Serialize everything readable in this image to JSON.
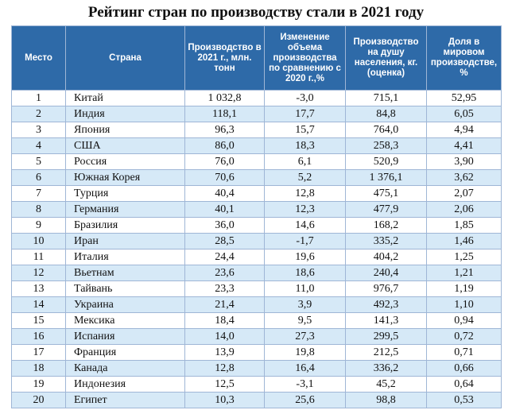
{
  "title": "Рейтинг стран по производству стали в 2021 году",
  "headers": [
    "Место",
    "Страна",
    "Производство в 2021 г., млн. тонн",
    "Изменение объема производства по сравнению с 2020 г.,%",
    "Производство на душу населения, кг. (оценка)",
    "Доля в мировом производстве, %"
  ],
  "rows": [
    {
      "rank": "1",
      "country": "Китай",
      "production": "1 032,8",
      "change": "-3,0",
      "per_capita": "715,1",
      "share": "52,95"
    },
    {
      "rank": "2",
      "country": "Индия",
      "production": "118,1",
      "change": "17,7",
      "per_capita": "84,8",
      "share": "6,05"
    },
    {
      "rank": "3",
      "country": "Япония",
      "production": "96,3",
      "change": "15,7",
      "per_capita": "764,0",
      "share": "4,94"
    },
    {
      "rank": "4",
      "country": "США",
      "production": "86,0",
      "change": "18,3",
      "per_capita": "258,3",
      "share": "4,41"
    },
    {
      "rank": "5",
      "country": "Россия",
      "production": "76,0",
      "change": "6,1",
      "per_capita": "520,9",
      "share": "3,90"
    },
    {
      "rank": "6",
      "country": "Южная Корея",
      "production": "70,6",
      "change": "5,2",
      "per_capita": "1 376,1",
      "share": "3,62"
    },
    {
      "rank": "7",
      "country": "Турция",
      "production": "40,4",
      "change": "12,8",
      "per_capita": "475,1",
      "share": "2,07"
    },
    {
      "rank": "8",
      "country": "Германия",
      "production": "40,1",
      "change": "12,3",
      "per_capita": "477,9",
      "share": "2,06"
    },
    {
      "rank": "9",
      "country": "Бразилия",
      "production": "36,0",
      "change": "14,6",
      "per_capita": "168,2",
      "share": "1,85"
    },
    {
      "rank": "10",
      "country": "Иран",
      "production": "28,5",
      "change": "-1,7",
      "per_capita": "335,2",
      "share": "1,46"
    },
    {
      "rank": "11",
      "country": "Италия",
      "production": "24,4",
      "change": "19,6",
      "per_capita": "404,2",
      "share": "1,25"
    },
    {
      "rank": "12",
      "country": "Вьетнам",
      "production": "23,6",
      "change": "18,6",
      "per_capita": "240,4",
      "share": "1,21"
    },
    {
      "rank": "13",
      "country": "Тайвань",
      "production": "23,3",
      "change": "11,0",
      "per_capita": "976,7",
      "share": "1,19"
    },
    {
      "rank": "14",
      "country": "Украина",
      "production": "21,4",
      "change": "3,9",
      "per_capita": "492,3",
      "share": "1,10"
    },
    {
      "rank": "15",
      "country": "Мексика",
      "production": "18,4",
      "change": "9,5",
      "per_capita": "141,3",
      "share": "0,94"
    },
    {
      "rank": "16",
      "country": "Испания",
      "production": "14,0",
      "change": "27,3",
      "per_capita": "299,5",
      "share": "0,72"
    },
    {
      "rank": "17",
      "country": "Франция",
      "production": "13,9",
      "change": "19,8",
      "per_capita": "212,5",
      "share": "0,71"
    },
    {
      "rank": "18",
      "country": "Канада",
      "production": "12,8",
      "change": "16,4",
      "per_capita": "336,2",
      "share": "0,66"
    },
    {
      "rank": "19",
      "country": "Индонезия",
      "production": "12,5",
      "change": "-3,1",
      "per_capita": "45,2",
      "share": "0,64"
    },
    {
      "rank": "20",
      "country": "Египет",
      "production": "10,3",
      "change": "25,6",
      "per_capita": "98,8",
      "share": "0,53"
    }
  ]
}
